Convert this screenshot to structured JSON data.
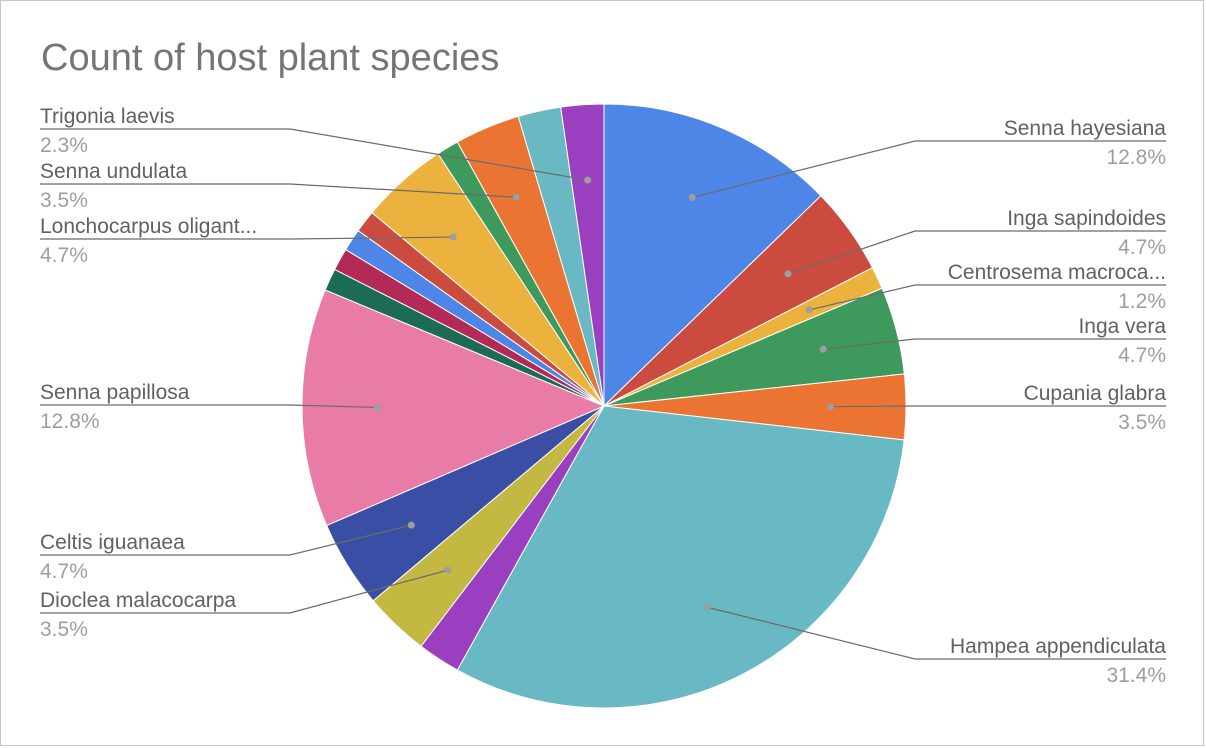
{
  "chart_data": {
    "type": "pie",
    "title": "Count of host plant species",
    "slices": [
      {
        "label": "Senna hayesiana",
        "pct_label": "12.8%",
        "value": 12.8,
        "color": "#4e86e8",
        "labeled": true
      },
      {
        "label": "Inga sapindoides",
        "pct_label": "4.7%",
        "value": 4.7,
        "color": "#cc4b3f",
        "labeled": true
      },
      {
        "label": "Centrosema macroca...",
        "pct_label": "1.2%",
        "value": 1.2,
        "color": "#ebb33d",
        "labeled": true
      },
      {
        "label": "Inga vera",
        "pct_label": "4.7%",
        "value": 4.7,
        "color": "#3e9a5c",
        "labeled": true
      },
      {
        "label": "Cupania glabra",
        "pct_label": "3.5%",
        "value": 3.5,
        "color": "#ec7432",
        "labeled": true
      },
      {
        "label": "Hampea appendiculata",
        "pct_label": "31.4%",
        "value": 31.4,
        "color": "#68b9c3",
        "labeled": true
      },
      {
        "label": "",
        "pct_label": "",
        "value": 2.3,
        "color": "#993fc0",
        "labeled": false
      },
      {
        "label": "Dioclea malacocarpa",
        "pct_label": "3.5%",
        "value": 3.5,
        "color": "#c3b942",
        "labeled": true
      },
      {
        "label": "Celtis iguanaea",
        "pct_label": "4.7%",
        "value": 4.7,
        "color": "#3a4ea5",
        "labeled": true
      },
      {
        "label": "Senna papillosa",
        "pct_label": "12.8%",
        "value": 12.8,
        "color": "#e87ca6",
        "labeled": true
      },
      {
        "label": "",
        "pct_label": "",
        "value": 1.2,
        "color": "#1b6b57",
        "labeled": false
      },
      {
        "label": "",
        "pct_label": "",
        "value": 1.2,
        "color": "#b32a57",
        "labeled": false
      },
      {
        "label": "",
        "pct_label": "",
        "value": 1.2,
        "color": "#4e86e8",
        "labeled": false
      },
      {
        "label": "",
        "pct_label": "",
        "value": 1.2,
        "color": "#cc4b3f",
        "labeled": false
      },
      {
        "label": "Lonchocarpus oligant...",
        "pct_label": "4.7%",
        "value": 4.7,
        "color": "#ebb33d",
        "labeled": true
      },
      {
        "label": "",
        "pct_label": "",
        "value": 1.2,
        "color": "#3e9a5c",
        "labeled": false
      },
      {
        "label": "Senna undulata",
        "pct_label": "3.5%",
        "value": 3.5,
        "color": "#ec7432",
        "labeled": true
      },
      {
        "label": "",
        "pct_label": "",
        "value": 2.3,
        "color": "#68b9c3",
        "labeled": false
      },
      {
        "label": "Trigonia laevis",
        "pct_label": "2.3%",
        "value": 2.3,
        "color": "#993fc0",
        "labeled": true
      }
    ],
    "legend": "labels with leader lines"
  }
}
